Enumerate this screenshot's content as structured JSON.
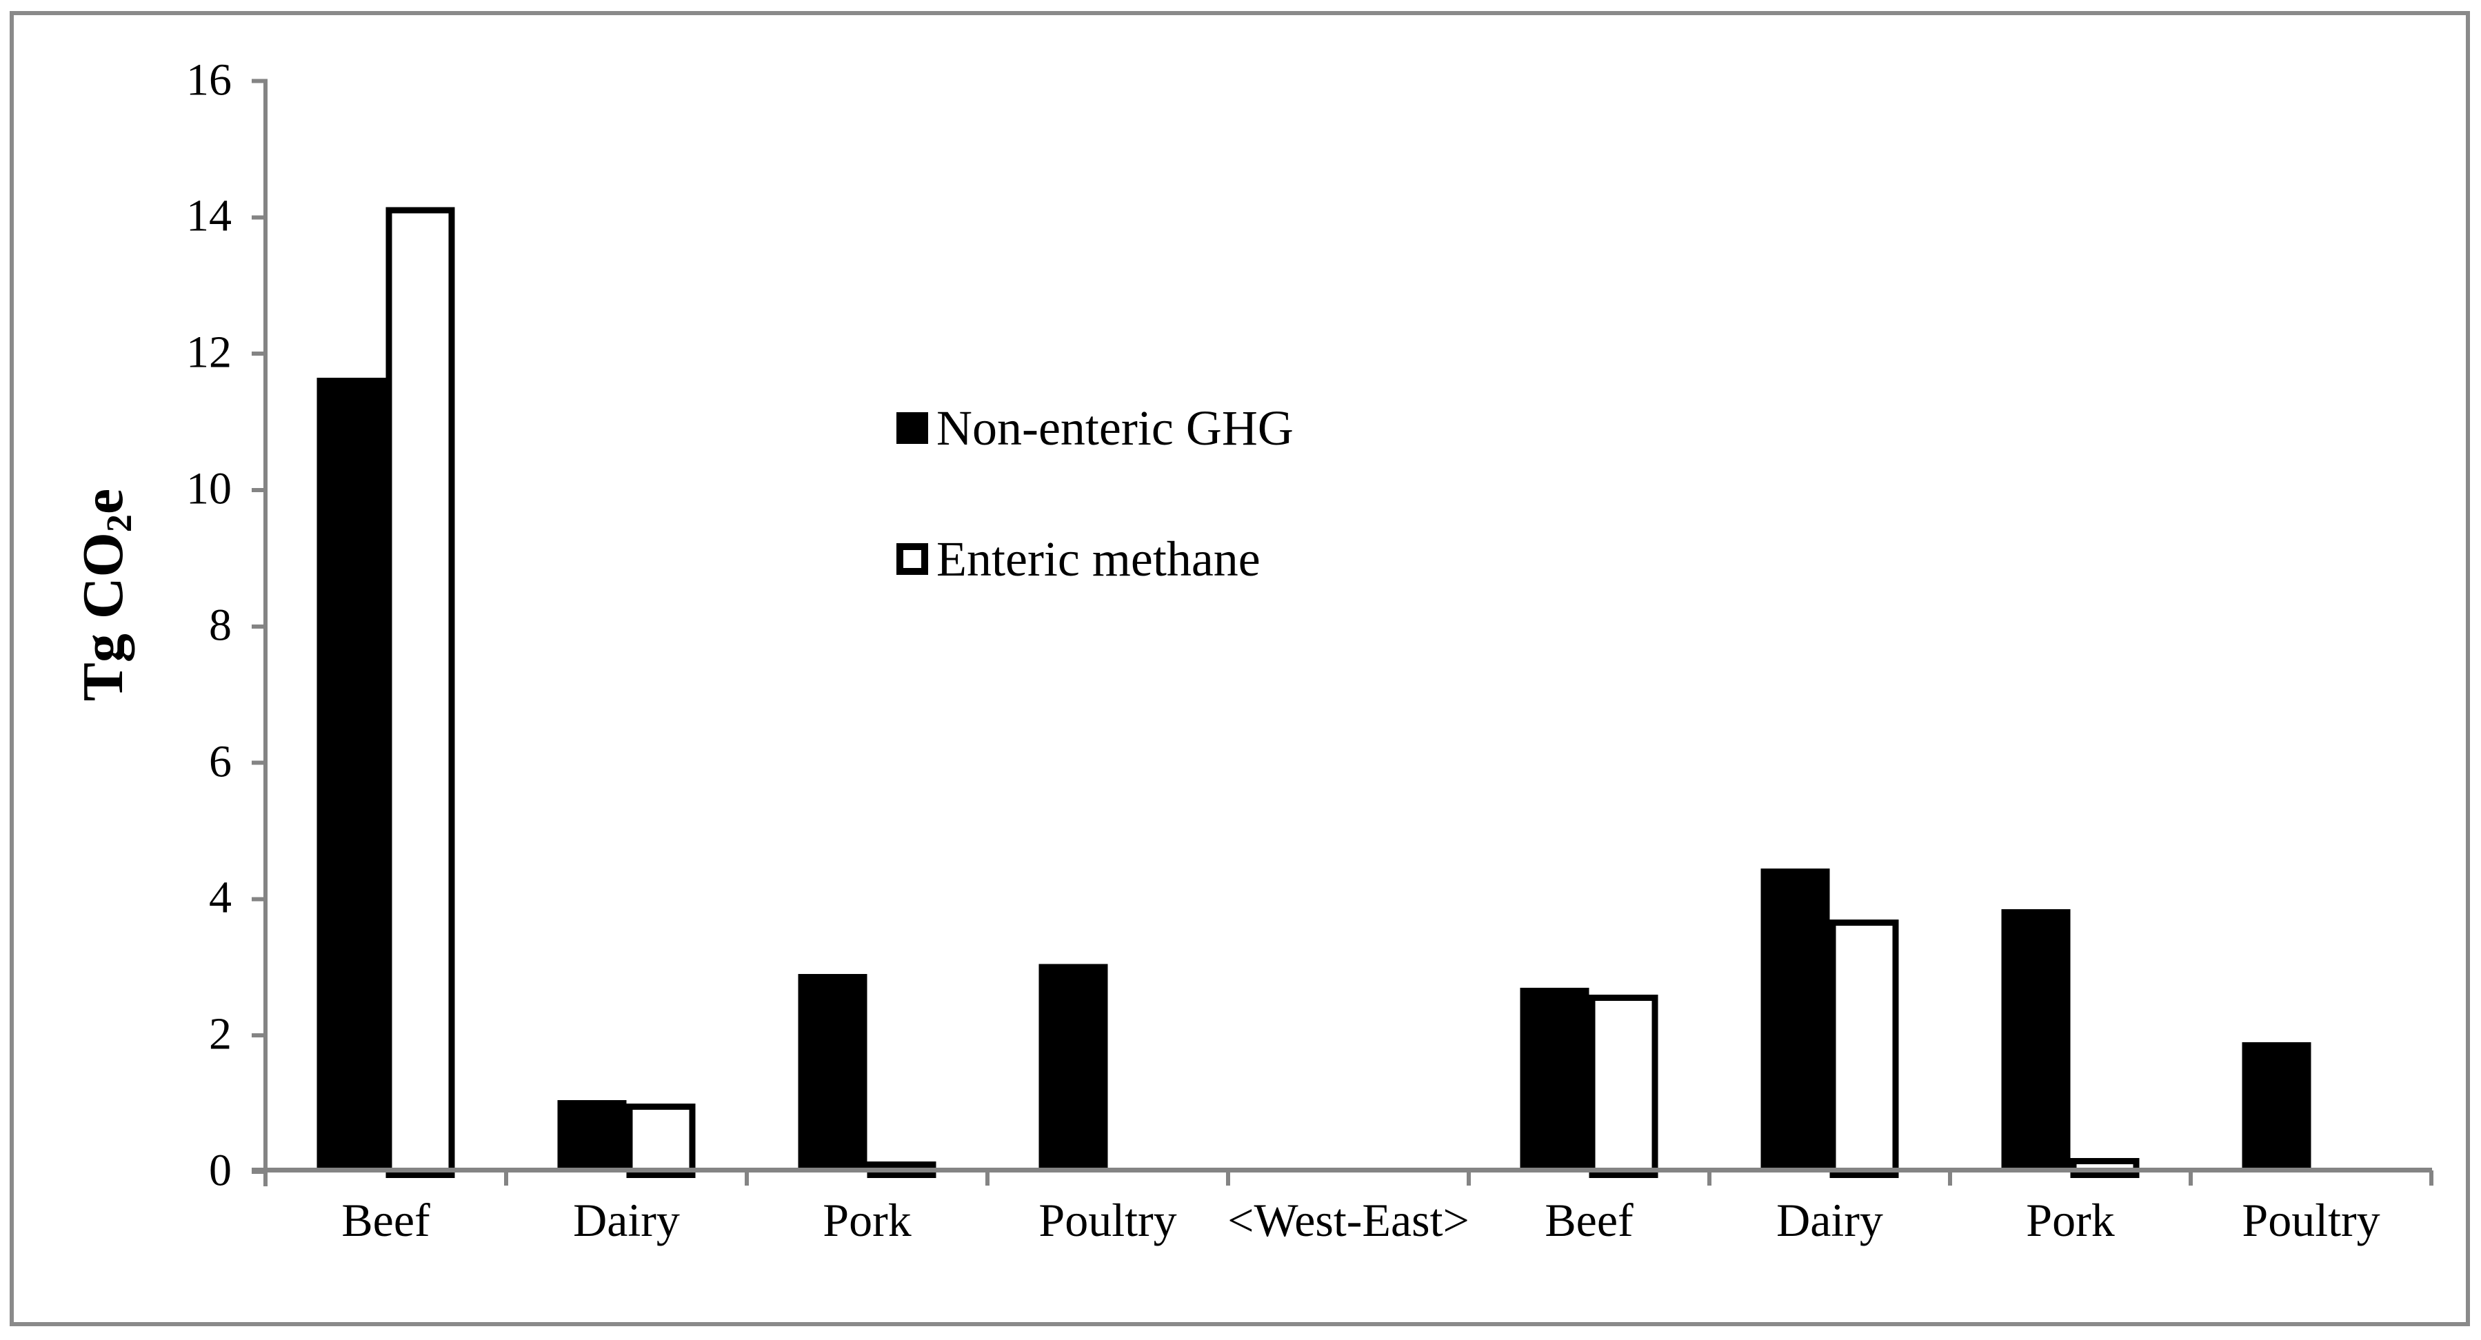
{
  "figure": {
    "background": "#ffffff",
    "border_color": "#8a8a8a",
    "axis_color": "#848484",
    "bar_color": "#000000",
    "text_color": "#000000"
  },
  "chart_data": {
    "type": "bar",
    "title": "",
    "xlabel": "",
    "ylabel": "Tg CO2e",
    "ylabel_parts": {
      "pre": "Tg CO",
      "sub": "2",
      "post": "e"
    },
    "ylim": [
      0,
      16
    ],
    "yticks": [
      0,
      2,
      4,
      6,
      8,
      10,
      12,
      14,
      16
    ],
    "grid": false,
    "legend_position": "upper-center-left, stacked vertically inside plot",
    "categories": [
      "Beef",
      "Dairy",
      "Pork",
      "Poultry",
      "<West-East>",
      "Beef",
      "Dairy",
      "Pork",
      "Poultry"
    ],
    "region_note": "first four categories are West, last four are East, separated by <West-East> divider label",
    "series": [
      {
        "name": "Non-enteric GHG",
        "style": "solid black bar",
        "values": [
          11.65,
          1.05,
          2.9,
          3.05,
          null,
          2.7,
          4.45,
          3.85,
          1.9
        ]
      },
      {
        "name": "Enteric methane",
        "style": "white bar with black outline",
        "values": [
          14.15,
          1.0,
          0.15,
          null,
          null,
          2.6,
          3.7,
          0.2,
          null
        ]
      }
    ]
  }
}
